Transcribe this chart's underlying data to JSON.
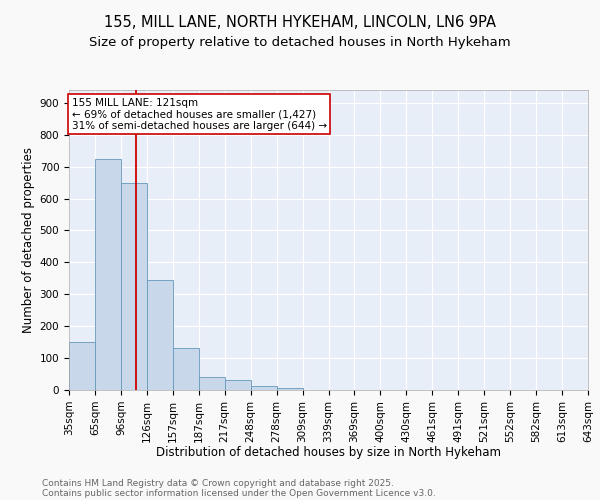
{
  "title_line1": "155, MILL LANE, NORTH HYKEHAM, LINCOLN, LN6 9PA",
  "title_line2": "Size of property relative to detached houses in North Hykeham",
  "xlabel": "Distribution of detached houses by size in North Hykeham",
  "ylabel": "Number of detached properties",
  "bar_color": "#c8d8ea",
  "bar_edge_color": "#6699bb",
  "background_color": "#e8eef8",
  "grid_color": "#ffffff",
  "bins": [
    "35sqm",
    "65sqm",
    "96sqm",
    "126sqm",
    "157sqm",
    "187sqm",
    "217sqm",
    "248sqm",
    "278sqm",
    "309sqm",
    "339sqm",
    "369sqm",
    "400sqm",
    "430sqm",
    "461sqm",
    "491sqm",
    "521sqm",
    "552sqm",
    "582sqm",
    "613sqm",
    "643sqm"
  ],
  "values": [
    150,
    723,
    650,
    345,
    132,
    42,
    32,
    12,
    5,
    0,
    0,
    0,
    0,
    0,
    0,
    0,
    0,
    0,
    0,
    0
  ],
  "vline_x": 2.6,
  "vline_color": "#cc0000",
  "annotation_text": "155 MILL LANE: 121sqm\n← 69% of detached houses are smaller (1,427)\n31% of semi-detached houses are larger (644) →",
  "annotation_box_color": "#ffffff",
  "annotation_border_color": "#cc0000",
  "ylim": [
    0,
    940
  ],
  "yticks": [
    0,
    100,
    200,
    300,
    400,
    500,
    600,
    700,
    800,
    900
  ],
  "footer_line1": "Contains HM Land Registry data © Crown copyright and database right 2025.",
  "footer_line2": "Contains public sector information licensed under the Open Government Licence v3.0.",
  "title_fontsize": 10.5,
  "subtitle_fontsize": 9.5,
  "axis_label_fontsize": 8.5,
  "tick_fontsize": 7.5,
  "annotation_fontsize": 7.5,
  "footer_fontsize": 6.5,
  "fig_bg": "#f9f9f9"
}
